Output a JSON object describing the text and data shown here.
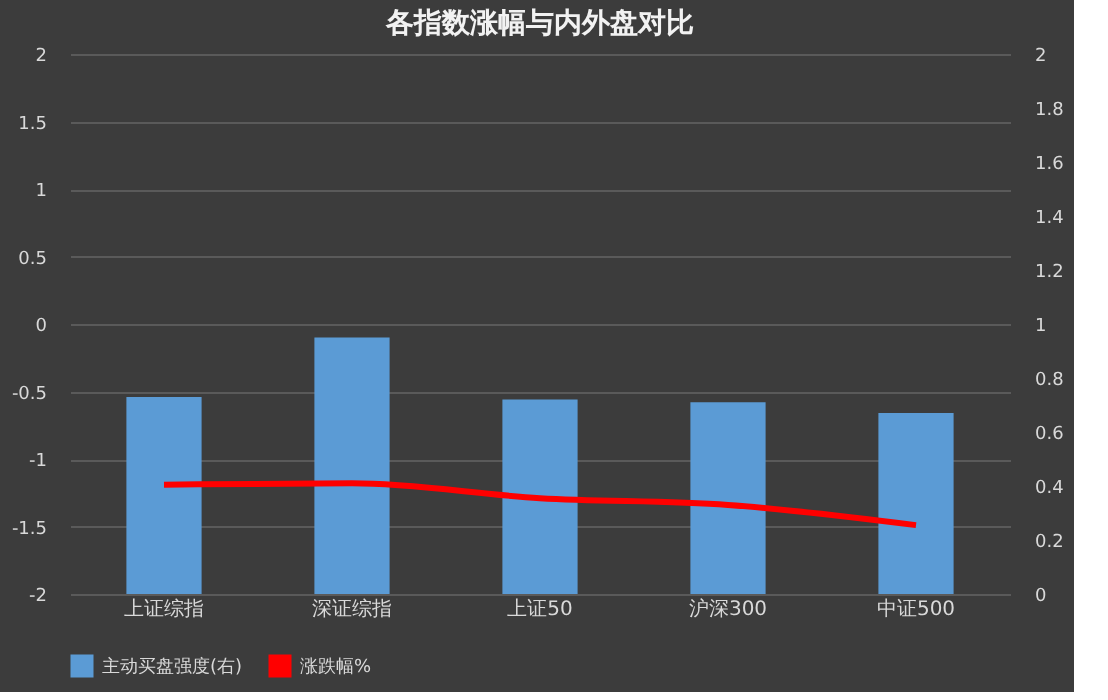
{
  "chart_data": {
    "type": "bar",
    "title": "各指数涨幅与内外盘对比",
    "categories": [
      "上证综指",
      "深证综指",
      "上证50",
      "沪深300",
      "中证500"
    ],
    "series": [
      {
        "name": "主动买盘强度(右)",
        "axis": "y2",
        "color": "#5b9bd5",
        "values": [
          0.73,
          0.95,
          0.72,
          0.71,
          0.67
        ]
      },
      {
        "name": "涨跌幅%",
        "type": "line",
        "color": "#ff0000",
        "values": [
          -1.19,
          -1.18,
          -1.29,
          -1.34,
          -1.49
        ]
      }
    ],
    "ylim": [
      -2,
      2
    ],
    "yticks": [
      -2,
      -1.5,
      -1,
      -0.5,
      0,
      0.5,
      1,
      1.5,
      2
    ],
    "y2lim": [
      0,
      2
    ],
    "y2ticks": [
      0,
      0.2,
      0.4,
      0.6,
      0.8,
      1,
      1.2,
      1.4,
      1.6,
      1.8,
      2
    ],
    "grid": "y",
    "legend": "bottom",
    "marker": "none"
  }
}
